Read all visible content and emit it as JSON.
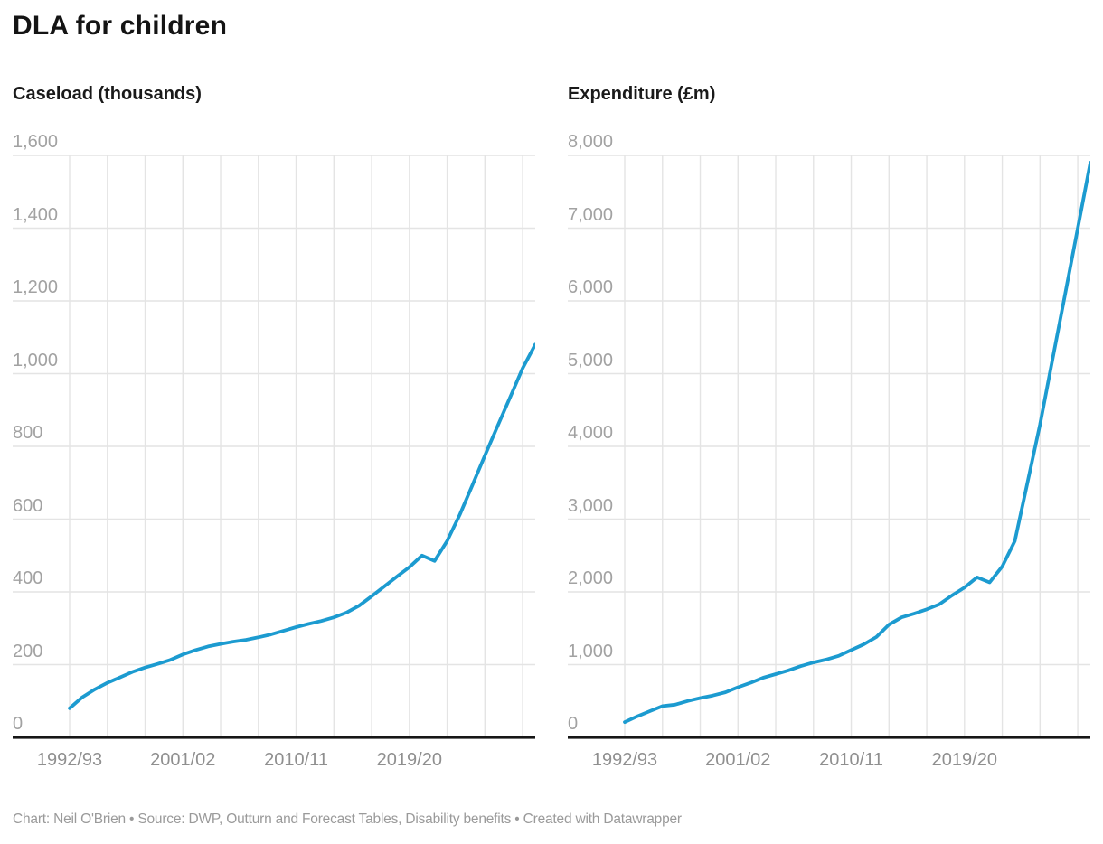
{
  "title": "DLA for children",
  "footer": "Chart: Neil O'Brien • Source: DWP, Outturn and Forecast Tables, Disability benefits • Created with Datawrapper",
  "colors": {
    "line": "#1c9bd0",
    "grid": "#e4e4e4",
    "baseline": "#161616",
    "y_tick_label": "#a2a2a2",
    "x_tick_label": "#8f8f8f",
    "title": "#141414",
    "footer": "#9a9a9a"
  },
  "chart_data": [
    {
      "type": "line",
      "title": "Caseload (thousands)",
      "xlabel": "",
      "ylabel": "Caseload (thousands)",
      "ylim": [
        0,
        1600
      ],
      "ytick_step": 200,
      "grid": true,
      "legend": "none",
      "x_tick_labels": [
        "1992/93",
        "2001/02",
        "2010/11",
        "2019/20"
      ],
      "x_gridline_interval_years": 3,
      "x": [
        "1992/93",
        "1993/94",
        "1994/95",
        "1995/96",
        "1996/97",
        "1997/98",
        "1998/99",
        "1999/00",
        "2000/01",
        "2001/02",
        "2002/03",
        "2003/04",
        "2004/05",
        "2005/06",
        "2006/07",
        "2007/08",
        "2008/09",
        "2009/10",
        "2010/11",
        "2011/12",
        "2012/13",
        "2013/14",
        "2014/15",
        "2015/16",
        "2016/17",
        "2017/18",
        "2018/19",
        "2019/20",
        "2020/21",
        "2021/22",
        "2022/23",
        "2023/24",
        "2024/25",
        "2025/26",
        "2026/27",
        "2027/28",
        "2028/29",
        "2029/30"
      ],
      "values": [
        80,
        110,
        132,
        150,
        165,
        180,
        192,
        202,
        213,
        228,
        240,
        250,
        257,
        263,
        268,
        275,
        283,
        293,
        303,
        312,
        320,
        330,
        343,
        362,
        388,
        415,
        442,
        468,
        500,
        485,
        540,
        612,
        693,
        775,
        855,
        935,
        1015,
        1080
      ]
    },
    {
      "type": "line",
      "title": "Expenditure (£m)",
      "xlabel": "",
      "ylabel": "Expenditure (£m)",
      "ylim": [
        0,
        8000
      ],
      "ytick_step": 1000,
      "grid": true,
      "legend": "none",
      "x_tick_labels": [
        "1992/93",
        "2001/02",
        "2010/11",
        "2019/20"
      ],
      "x_gridline_interval_years": 3,
      "x": [
        "1992/93",
        "1993/94",
        "1994/95",
        "1995/96",
        "1996/97",
        "1997/98",
        "1998/99",
        "1999/00",
        "2000/01",
        "2001/02",
        "2002/03",
        "2003/04",
        "2004/05",
        "2005/06",
        "2006/07",
        "2007/08",
        "2008/09",
        "2009/10",
        "2010/11",
        "2011/12",
        "2012/13",
        "2013/14",
        "2014/15",
        "2015/16",
        "2016/17",
        "2017/18",
        "2018/19",
        "2019/20",
        "2020/21",
        "2021/22",
        "2022/23",
        "2023/24",
        "2024/25",
        "2025/26",
        "2026/27",
        "2027/28",
        "2028/29",
        "2029/30"
      ],
      "values": [
        210,
        290,
        360,
        430,
        450,
        500,
        540,
        575,
        620,
        690,
        750,
        820,
        870,
        920,
        980,
        1030,
        1070,
        1120,
        1200,
        1280,
        1380,
        1550,
        1650,
        1700,
        1760,
        1830,
        1950,
        2060,
        2200,
        2130,
        2350,
        2700,
        3500,
        4300,
        5200,
        6100,
        7000,
        7900
      ]
    }
  ]
}
